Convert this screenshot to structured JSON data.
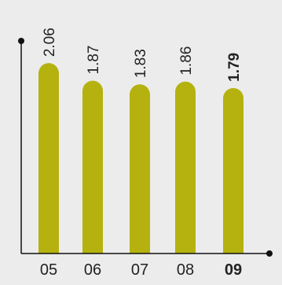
{
  "colors": {
    "panel_background": "#ececec",
    "bar": "#b5b20f",
    "axis": "#111111",
    "text": "#222222"
  },
  "chart_data": {
    "type": "bar",
    "categories": [
      "05",
      "06",
      "07",
      "08",
      "09"
    ],
    "values": [
      2.06,
      1.87,
      1.83,
      1.86,
      1.79
    ],
    "value_labels": [
      "2.06",
      "1.87",
      "1.83",
      "1.86",
      "1.79"
    ],
    "highlighted_category": "09",
    "bar_shape": "rounded-top pill",
    "data_label_orientation": "vertical",
    "title": "",
    "xlabel": "",
    "ylabel": "",
    "ylim": [
      0,
      2.3
    ],
    "grid": false,
    "legend": "none",
    "axis_arrow_markers": "dots at ends"
  }
}
